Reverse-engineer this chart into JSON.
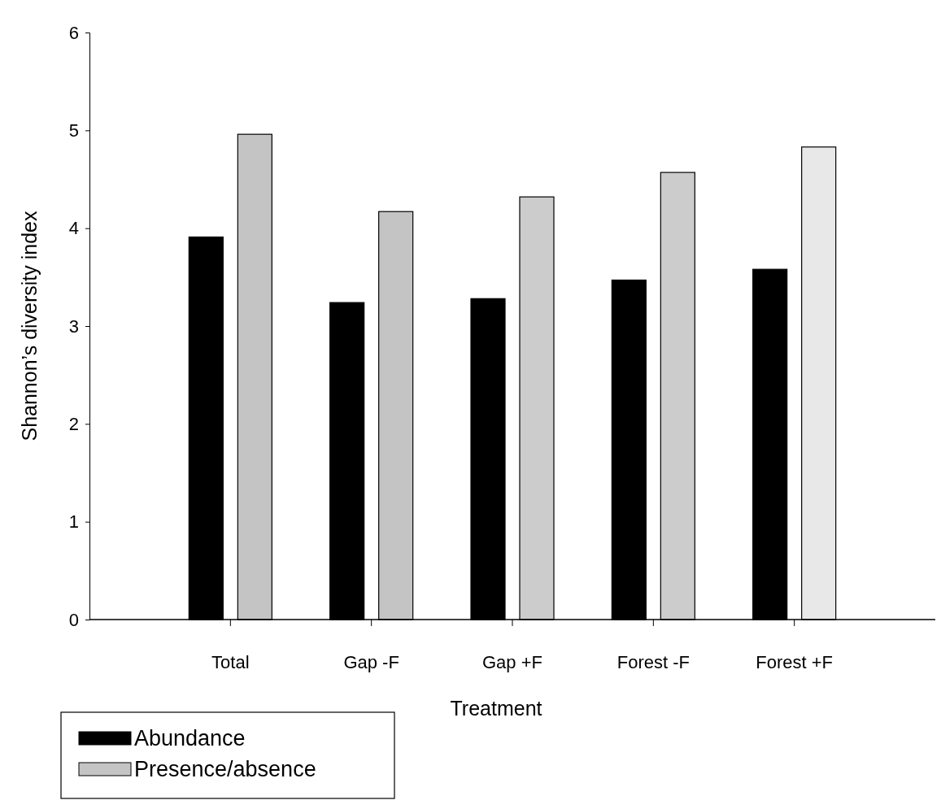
{
  "chart_data": {
    "type": "bar",
    "xlabel": "Treatment",
    "ylabel": "Shannon’s diversity index",
    "categories": [
      "Total",
      "Gap -F",
      "Gap +F",
      "Forest -F",
      "Forest +F"
    ],
    "series": [
      {
        "name": "Abundance",
        "color": "#000000",
        "values": [
          3.91,
          3.24,
          3.28,
          3.47,
          3.58
        ]
      },
      {
        "name": "Presence/absence",
        "color": "#c4c4c4",
        "colors": [
          "#c4c4c4",
          "#c4c4c4",
          "#cccccc",
          "#cccccc",
          "#e8e8e8"
        ],
        "values": [
          4.96,
          4.17,
          4.32,
          4.57,
          4.83
        ]
      }
    ],
    "ylim": [
      0,
      6
    ],
    "yticks": [
      0,
      1,
      2,
      3,
      4,
      5,
      6
    ],
    "grid": false,
    "legend": "bottom left"
  }
}
